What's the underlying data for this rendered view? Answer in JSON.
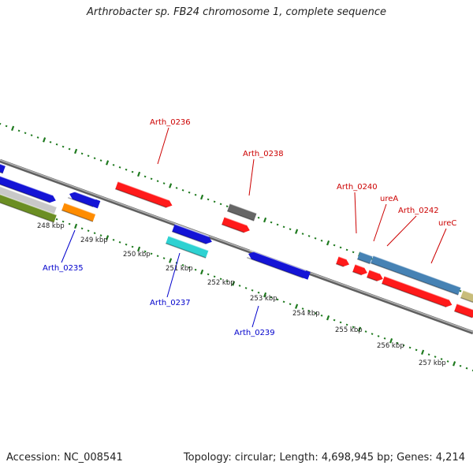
{
  "title": "Arthrobacter sp. FB24 chromosome 1, complete sequence",
  "accession": "Accession: NC_008541",
  "topology": "Topology: circular; Length: 4,698,945 bp; Genes: 4,214",
  "colors": {
    "red": "#ff1a1a",
    "blue": "#1414d6",
    "gray": "#666666",
    "cyan": "#2ed2d2",
    "orange": "#ff8c00",
    "olive": "#6b8e23",
    "steelblue": "#4682b4",
    "khaki": "#c8bd7a",
    "silver": "#c8c8c8",
    "tick": "#1f7a1f",
    "backbone": "#808080",
    "label_red": "#cc0000",
    "label_blue": "#0000cc"
  },
  "kbp_labels": [
    "248 kbp",
    "249 kbp",
    "250 kbp",
    "251 kbp",
    "252 kbp",
    "253 kbp",
    "254 kbp",
    "255 kbp",
    "256 kbp",
    "257 kbp"
  ],
  "gene_labels": [
    {
      "text": "Arth_0236",
      "color": "red"
    },
    {
      "text": "Arth_0238",
      "color": "red"
    },
    {
      "text": "Arth_0240",
      "color": "red"
    },
    {
      "text": "ureA",
      "color": "red"
    },
    {
      "text": "Arth_0242",
      "color": "red"
    },
    {
      "text": "ureC",
      "color": "red"
    },
    {
      "text": "Arth_0235",
      "color": "blue"
    },
    {
      "text": "Arth_0237",
      "color": "blue"
    },
    {
      "text": "Arth_0239",
      "color": "blue"
    }
  ]
}
